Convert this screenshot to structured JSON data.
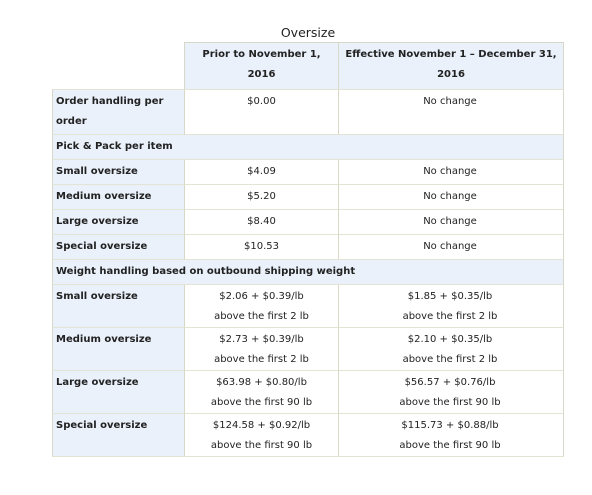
{
  "title": "Oversize",
  "columns": {
    "prior": "Prior to November 1, 2016",
    "effective": "Effective November 1 – December 31, 2016"
  },
  "order_handling": {
    "label": "Order handling per order",
    "prior": "$0.00",
    "effective": "No change"
  },
  "pick_pack": {
    "section": "Pick & Pack per item",
    "rows": [
      {
        "label": "Small oversize",
        "prior": "$4.09",
        "effective": "No change"
      },
      {
        "label": "Medium oversize",
        "prior": "$5.20",
        "effective": "No change"
      },
      {
        "label": "Large oversize",
        "prior": "$8.40",
        "effective": "No change"
      },
      {
        "label": "Special oversize",
        "prior": "$10.53",
        "effective": "No change"
      }
    ]
  },
  "weight_handling": {
    "section": "Weight handling based on outbound shipping weight",
    "rows": [
      {
        "label": "Small oversize",
        "prior_line1": "$2.06 + $0.39/lb",
        "prior_line2": "above the first 2 lb",
        "effective_line1": "$1.85 + $0.35/lb",
        "effective_line2": "above the first 2 lb"
      },
      {
        "label": "Medium oversize",
        "prior_line1": "$2.73 + $0.39/lb",
        "prior_line2": "above the first 2 lb",
        "effective_line1": "$2.10 + $0.35/lb",
        "effective_line2": "above the first 2 lb"
      },
      {
        "label": "Large oversize",
        "prior_line1": "$63.98 + $0.80/lb",
        "prior_line2": "above the first 90 lb",
        "effective_line1": "$56.57 + $0.76/lb",
        "effective_line2": "above the first 90 lb"
      },
      {
        "label": "Special oversize",
        "prior_line1": "$124.58 + $0.92/lb",
        "prior_line2": "above the first 90 lb",
        "effective_line1": "$115.73 + $0.88/lb",
        "effective_line2": "above the first 90 lb"
      }
    ]
  }
}
